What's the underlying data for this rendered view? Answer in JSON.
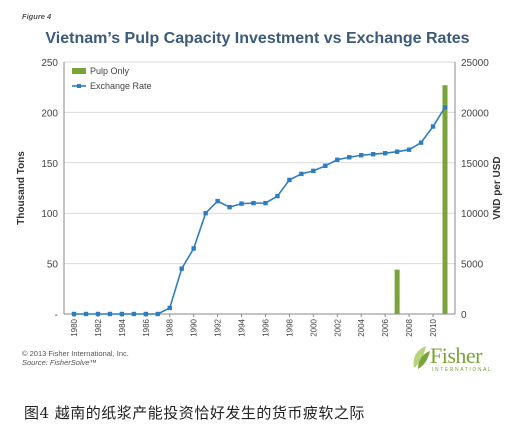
{
  "figure_label": "Figure 4",
  "caption": "图4  越南的纸浆产能投资恰好发生的货币疲软之际",
  "credits": {
    "copyright": "© 2013 Fisher International, Inc.",
    "source": "Source: FisherSolve™"
  },
  "logo": {
    "word": "Fisher",
    "sub": "INTERNATIONAL"
  },
  "colors": {
    "bars": "#7aa43a",
    "line": "#2e7dbf",
    "title": "#3c5a79",
    "grid": "#d9d9d9",
    "axis": "#888888"
  },
  "chart_data": {
    "type": "bar+line",
    "title": "Vietnam’s Pulp Capacity Investment vs Exchange Rates",
    "ylabel_left": "Thousand Tons",
    "ylabel_right": "VND per USD",
    "ylim_left": [
      0,
      250
    ],
    "ylim_right": [
      0,
      25000
    ],
    "yticks_left": [
      "-",
      "50",
      "100",
      "150",
      "200",
      "250"
    ],
    "yticks_right": [
      "0",
      "5000",
      "10000",
      "15000",
      "20000",
      "25000"
    ],
    "xticks": [
      "1980",
      "1982",
      "1984",
      "1986",
      "1988",
      "1990",
      "1992",
      "1994",
      "1996",
      "1998",
      "2000",
      "2002",
      "2004",
      "2006",
      "2008",
      "2010"
    ],
    "x": [
      1980,
      1981,
      1982,
      1983,
      1984,
      1985,
      1986,
      1987,
      1988,
      1989,
      1990,
      1991,
      1992,
      1993,
      1994,
      1995,
      1996,
      1997,
      1998,
      1999,
      2000,
      2001,
      2002,
      2003,
      2004,
      2005,
      2006,
      2007,
      2008,
      2009,
      2010,
      2011
    ],
    "legend": {
      "placement": "top-left",
      "entries": [
        "Pulp Only",
        "Exchange Rate"
      ]
    },
    "grid": "horizontal",
    "series": [
      {
        "name": "Pulp Only",
        "type": "bar",
        "axis": "left",
        "values": [
          0,
          0,
          0,
          0,
          0,
          0,
          0,
          0,
          0,
          0,
          0,
          0,
          0,
          0,
          0,
          0,
          0,
          0,
          0,
          0,
          0,
          0,
          0,
          0,
          0,
          0,
          0,
          44,
          0,
          0,
          0,
          227
        ]
      },
      {
        "name": "Exchange Rate",
        "type": "line",
        "axis": "right",
        "values": [
          0,
          0,
          0,
          0,
          0,
          0,
          0,
          0,
          600,
          4500,
          6500,
          10000,
          11200,
          10600,
          10950,
          11000,
          11000,
          11700,
          13300,
          13900,
          14200,
          14700,
          15300,
          15550,
          15750,
          15850,
          15950,
          16100,
          16300,
          17000,
          18600,
          20500
        ]
      }
    ]
  }
}
